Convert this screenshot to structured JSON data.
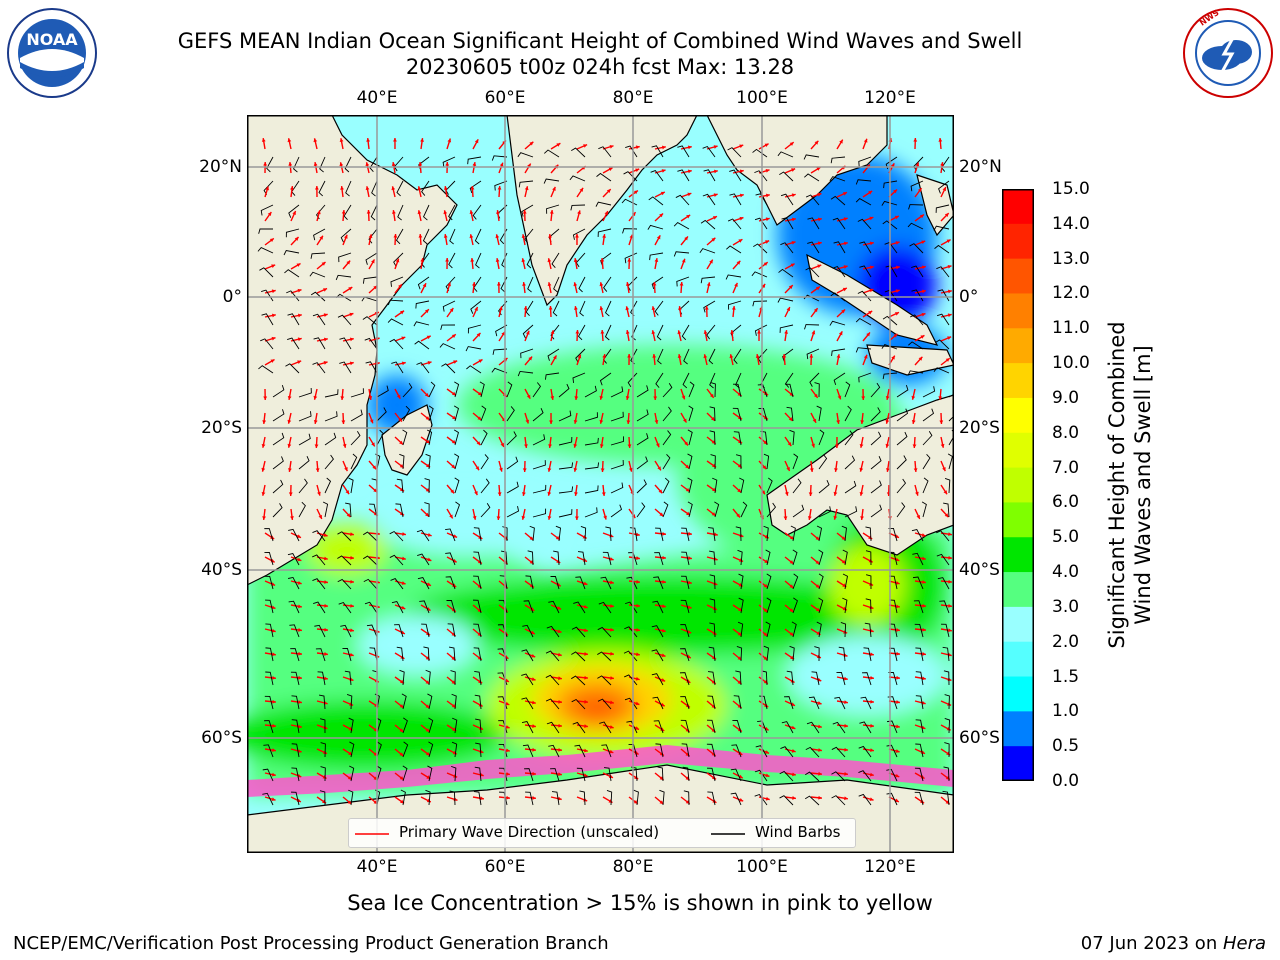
{
  "header": {
    "title_line1": "GEFS MEAN Indian Ocean Significant Height of Combined Wind Waves and Swell",
    "title_line2": "20230605 t00z 024h fcst   Max: 13.28"
  },
  "logos": {
    "noaa_text": "NOAA",
    "noaa_ring_text": "NATIONAL OCEANIC AND ATMOSPHERIC ADMINISTRATION · U.S. DEPARTMENT OF COMMERCE",
    "nws_ring_text": "NATIONAL WEATHER SERVICE"
  },
  "map": {
    "lon_ticks": [
      "40°E",
      "60°E",
      "80°E",
      "100°E",
      "120°E"
    ],
    "lat_ticks": [
      "20°N",
      "0°",
      "20°S",
      "40°S",
      "60°S"
    ],
    "land_color": "#efeedc",
    "ocean_base_color": "#99ffff"
  },
  "colorbar": {
    "ticks": [
      "15.0",
      "14.0",
      "13.0",
      "12.0",
      "11.0",
      "10.0",
      "9.0",
      "8.0",
      "7.0",
      "6.0",
      "5.0",
      "4.0",
      "3.0",
      "2.0",
      "1.5",
      "1.0",
      "0.5",
      "0.0"
    ],
    "colors": [
      "#ff0000",
      "#ff2400",
      "#ff5500",
      "#ff8000",
      "#ffaa00",
      "#ffd400",
      "#ffff00",
      "#e0ff00",
      "#c0ff00",
      "#7fff00",
      "#00e600",
      "#55ff80",
      "#99ffff",
      "#55ffff",
      "#00ffff",
      "#0080ff",
      "#0000ff"
    ],
    "label_line1": "Significant Height of Combined",
    "label_line2": "Wind Waves and Swell [m]"
  },
  "legend": {
    "wave_direction": "Primary Wave Direction (unscaled)",
    "wind_barbs": "Wind Barbs",
    "wave_color": "#ff0000",
    "barb_color": "#000000"
  },
  "caption": "Sea Ice Concentration > 15% is shown in pink to yellow",
  "footer": {
    "left": "NCEP/EMC/Verification Post Processing Product Generation Branch",
    "date": "07 Jun 2023 on ",
    "machine": "Hera"
  }
}
